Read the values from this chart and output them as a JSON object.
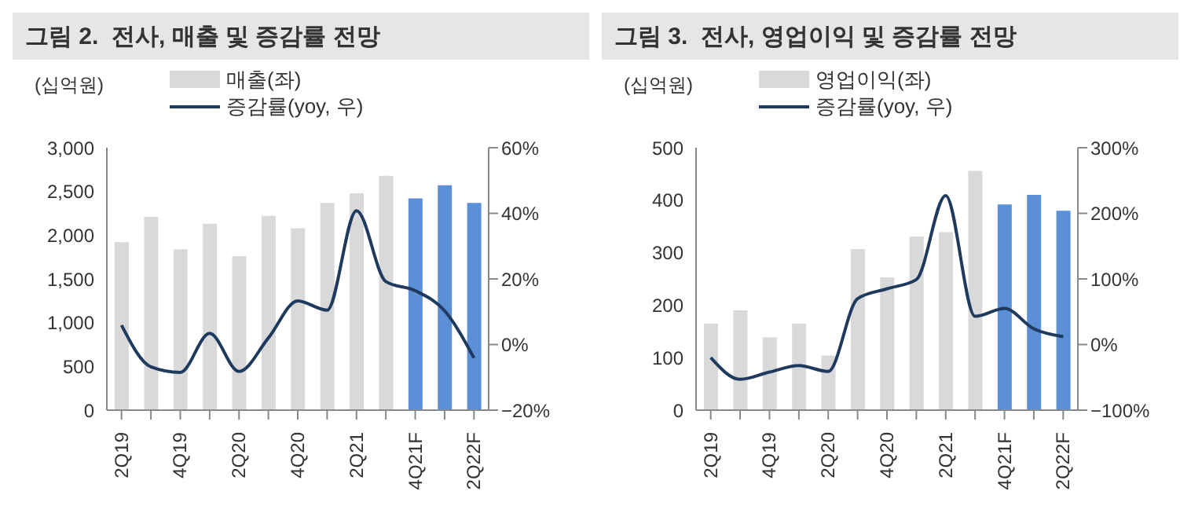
{
  "chart_data": [
    {
      "type": "bar",
      "title": "그림 2.  전사, 매출 및 증감률 전망",
      "ylabel": "(십억원)",
      "categories": [
        "2Q19",
        null,
        "4Q19",
        null,
        "2Q20",
        null,
        "4Q20",
        null,
        "2Q21",
        null,
        "4Q21F",
        null,
        "2Q22F"
      ],
      "series": [
        {
          "name": "매출(좌)",
          "color": "#d9d9d9",
          "colors": [
            "#d9d9d9",
            "#d9d9d9",
            "#d9d9d9",
            "#d9d9d9",
            "#d9d9d9",
            "#d9d9d9",
            "#d9d9d9",
            "#d9d9d9",
            "#d9d9d9",
            "#d9d9d9",
            "#5b8fd6",
            "#5b8fd6",
            "#5b8fd6"
          ],
          "values": [
            1920,
            2210,
            1840,
            2130,
            1760,
            2220,
            2080,
            2370,
            2480,
            2680,
            2420,
            2570,
            2370
          ]
        },
        {
          "name": "증감률(yoy, 우)",
          "type": "line",
          "axis": "y2",
          "color": "#1f3a5f",
          "values": [
            5.9,
            -6.8,
            -8.5,
            3.4,
            -8.2,
            2,
            13.3,
            10.5,
            40.8,
            19.2,
            16.4,
            10.3,
            -4.1
          ]
        }
      ],
      "ylim": [
        0,
        3000
      ],
      "yticks": [
        0,
        {
          "value": 500,
          "label": "500"
        },
        {
          "value": 1000,
          "label": "1,000"
        },
        {
          "value": 1500,
          "label": "1,500"
        },
        {
          "value": 2000,
          "label": "2,000"
        },
        {
          "value": 2500,
          "label": "2,500"
        },
        {
          "value": 3000,
          "label": "3,000"
        }
      ],
      "y2lim": [
        -20,
        60
      ],
      "y2ticks": [
        {
          "value": -20,
          "label": "−20%"
        },
        {
          "value": 0,
          "label": "0%"
        },
        {
          "value": 20,
          "label": "20%"
        },
        {
          "value": 40,
          "label": "40%"
        },
        {
          "value": 60,
          "label": "60%"
        }
      ],
      "legend": "top",
      "marker": "none",
      "line_style": "solid"
    },
    {
      "type": "bar",
      "title": "그림 3.  전사, 영업이익 및 증감률 전망",
      "ylabel": "(십억원)",
      "categories": [
        "2Q19",
        null,
        "4Q19",
        null,
        "2Q20",
        null,
        "4Q20",
        null,
        "2Q21",
        null,
        "4Q21F",
        null,
        "2Q22F"
      ],
      "series": [
        {
          "name": "영업이익(좌)",
          "color": "#d9d9d9",
          "colors": [
            "#d9d9d9",
            "#d9d9d9",
            "#d9d9d9",
            "#d9d9d9",
            "#d9d9d9",
            "#d9d9d9",
            "#d9d9d9",
            "#d9d9d9",
            "#d9d9d9",
            "#d9d9d9",
            "#5b8fd6",
            "#5b8fd6",
            "#5b8fd6"
          ],
          "values": [
            165,
            190,
            139,
            165,
            104,
            307,
            253,
            331,
            339,
            456,
            392,
            410,
            380
          ]
        },
        {
          "name": "증감률(yoy, 우)",
          "type": "line",
          "axis": "y2",
          "color": "#1f3a5f",
          "values": [
            -20,
            -53,
            -42,
            -32,
            -41,
            70,
            85,
            99,
            227,
            43,
            55,
            24,
            12
          ]
        }
      ],
      "ylim": [
        0,
        500
      ],
      "yticks": [
        0,
        100,
        200,
        300,
        400,
        500
      ],
      "y2lim": [
        -100,
        300
      ],
      "y2ticks": [
        {
          "value": -100,
          "label": "−100%"
        },
        {
          "value": 0,
          "label": "0%"
        },
        {
          "value": 100,
          "label": "100%"
        },
        {
          "value": 200,
          "label": "200%"
        },
        {
          "value": 300,
          "label": "300%"
        }
      ],
      "legend": "top",
      "marker": "none",
      "line_style": "solid"
    }
  ]
}
